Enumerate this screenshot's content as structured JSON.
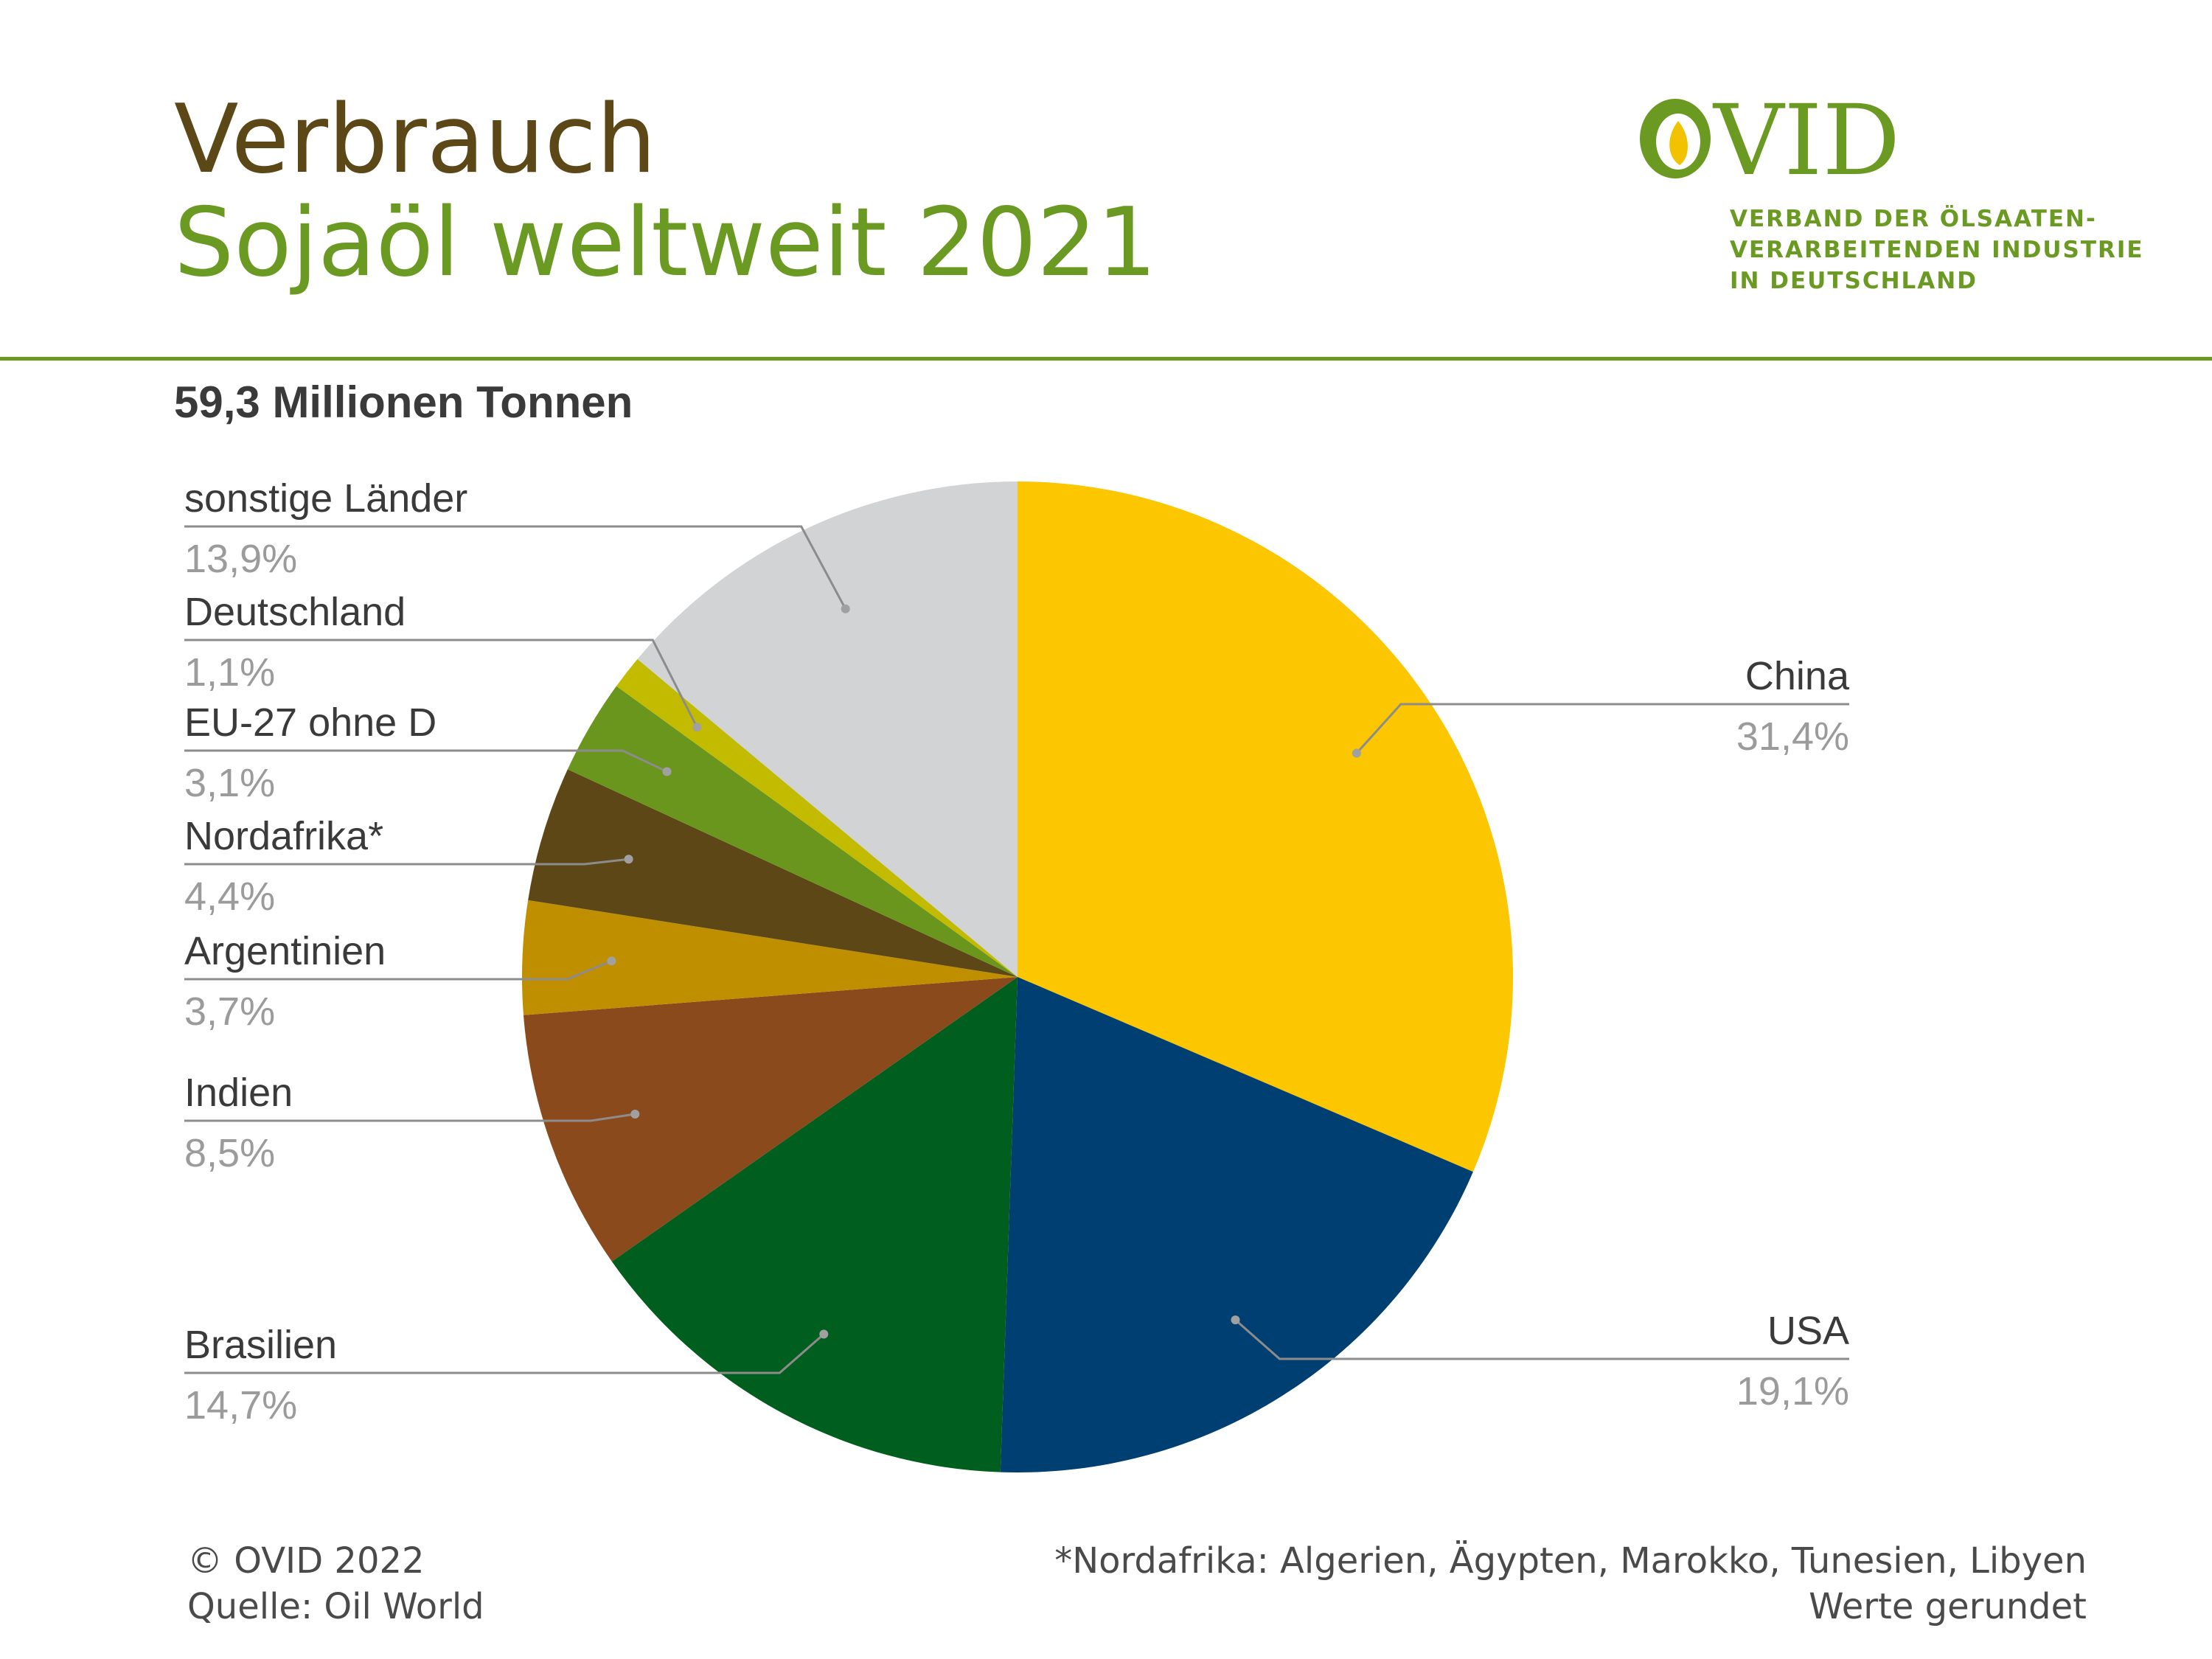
{
  "header": {
    "title_line1": "Verbrauch",
    "title_line2": "Sojaöl weltweit 2021",
    "subtitle": "59,3 Millionen Tonnen",
    "logo_text": "OVID",
    "org_line1": "VERBAND DER ÖLSAATEN-",
    "org_line2": "VERARBEITENDEN INDUSTRIE",
    "org_line3": "IN DEUTSCHLAND"
  },
  "colors": {
    "title_brown": "#5c4717",
    "brand_green": "#6a9a22",
    "label_dark": "#3a3a3a",
    "label_gray": "#9b9b9b"
  },
  "chart_data": {
    "type": "pie",
    "title": "Sojaöl weltweit 2021",
    "total": "59,3 Millionen Tonnen",
    "start_angle_deg": 0,
    "direction": "clockwise",
    "slices": [
      {
        "name": "China",
        "value": 31.4,
        "label": "31,4%",
        "color": "#fcc600",
        "side": "right"
      },
      {
        "name": "USA",
        "value": 19.1,
        "label": "19,1%",
        "color": "#003f72",
        "side": "right"
      },
      {
        "name": "Brasilien",
        "value": 14.7,
        "label": "14,7%",
        "color": "#005e1e",
        "side": "left"
      },
      {
        "name": "Indien",
        "value": 8.5,
        "label": "8,5%",
        "color": "#8a4a1c",
        "side": "left"
      },
      {
        "name": "Argentinien",
        "value": 3.7,
        "label": "3,7%",
        "color": "#bf8f00",
        "side": "left"
      },
      {
        "name": "Nordafrika*",
        "value": 4.4,
        "label": "4,4%",
        "color": "#5e4716",
        "side": "left"
      },
      {
        "name": "EU-27 ohne D",
        "value": 3.1,
        "label": "3,1%",
        "color": "#6a961e",
        "side": "left"
      },
      {
        "name": "Deutschland",
        "value": 1.1,
        "label": "1,1%",
        "color": "#c2bb00",
        "side": "left"
      },
      {
        "name": "sonstige Länder",
        "value": 13.9,
        "label": "13,9%",
        "color": "#d1d3d4",
        "side": "left"
      }
    ]
  },
  "footer": {
    "copyright": "© OVID 2022",
    "source": "Quelle: Oil World",
    "note": "*Nordafrika:  Algerien, Ägypten, Marokko, Tunesien, Libyen",
    "rounded": "Werte gerundet"
  }
}
